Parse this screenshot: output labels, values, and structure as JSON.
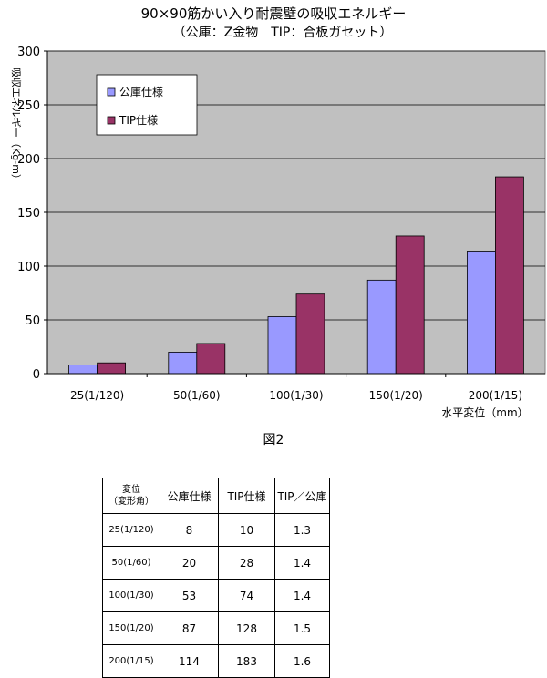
{
  "chart_data": {
    "type": "bar",
    "title": "90×90筋かい入り耐震壁の吸収エネルギー",
    "subtitle": "（公庫：Z金物　TIP：合板ガセット）",
    "xlabel": "水平変位（mm）",
    "ylabel": "吸収エネルギー（Kg-m）",
    "ylim": [
      0,
      300
    ],
    "yticks": [
      0,
      50,
      100,
      150,
      200,
      250,
      300
    ],
    "categories": [
      "25(1/120)",
      "50(1/60)",
      "100(1/30)",
      "150(1/20)",
      "200(1/15)"
    ],
    "series": [
      {
        "name": "公庫仕様",
        "values": [
          8,
          20,
          53,
          87,
          114
        ],
        "color": "#9999ff"
      },
      {
        "name": "TIP仕様",
        "values": [
          10,
          28,
          74,
          128,
          183
        ],
        "color": "#993366"
      }
    ],
    "grid": true,
    "legend": "top-left",
    "plot_background": "#c0c0c0"
  },
  "figure_caption": "図2",
  "table": {
    "header_first": [
      "変位",
      "（変形角）"
    ],
    "headers": [
      "公庫仕様",
      "TIP仕様",
      "TIP／公庫"
    ],
    "rows": [
      [
        "25(1/120)",
        "8",
        "10",
        "1.3"
      ],
      [
        "50(1/60)",
        "20",
        "28",
        "1.4"
      ],
      [
        "100(1/30)",
        "53",
        "74",
        "1.4"
      ],
      [
        "150(1/20)",
        "87",
        "128",
        "1.5"
      ],
      [
        "200(1/15)",
        "114",
        "183",
        "1.6"
      ]
    ]
  }
}
